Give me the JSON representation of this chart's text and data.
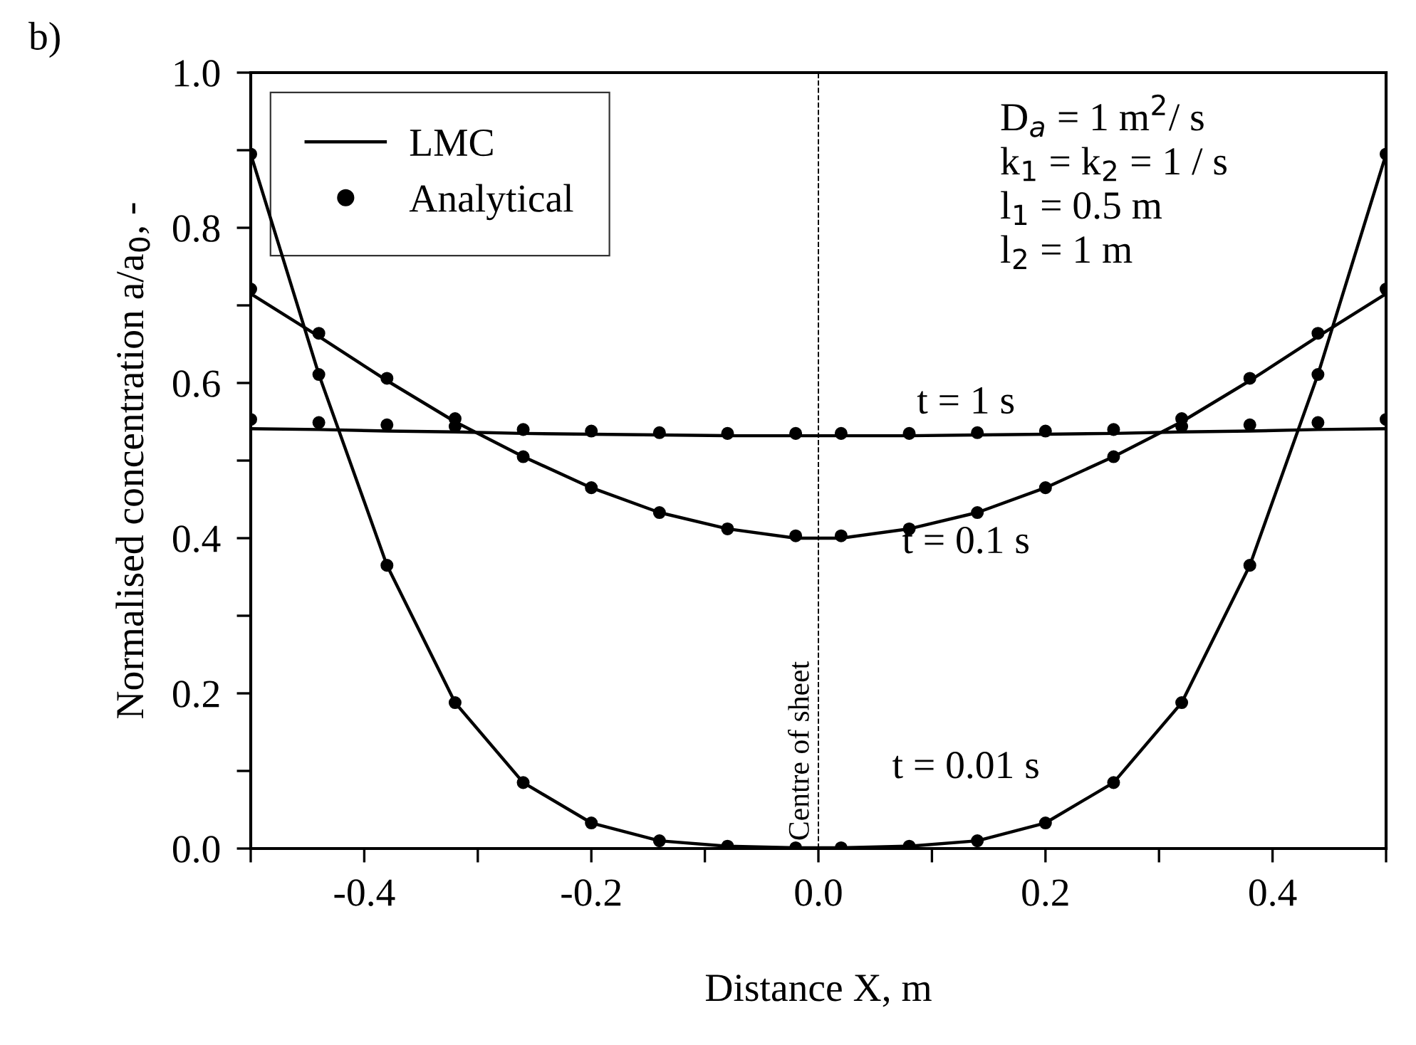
{
  "chart_data": {
    "type": "line",
    "xlabel": "Distance X, m",
    "ylabel": "Normalised concentration a/a$_{0}$, -",
    "xlim": [
      -0.5,
      0.5
    ],
    "ylim": [
      0,
      1.0
    ],
    "xticks": [
      {
        "value": -0.5,
        "label": null
      },
      {
        "value": -0.4,
        "label": "-0.4"
      },
      {
        "value": -0.3,
        "label": null
      },
      {
        "value": -0.2,
        "label": "-0.2"
      },
      {
        "value": -0.1,
        "label": null
      },
      {
        "value": 0.0,
        "label": "0.0"
      },
      {
        "value": 0.1,
        "label": null
      },
      {
        "value": 0.2,
        "label": "0.2"
      },
      {
        "value": 0.3,
        "label": null
      },
      {
        "value": 0.4,
        "label": "0.4"
      },
      {
        "value": 0.5,
        "label": null
      }
    ],
    "yticks": [
      {
        "value": 0.0,
        "label": "0.0"
      },
      {
        "value": 0.1,
        "label": null
      },
      {
        "value": 0.2,
        "label": "0.2"
      },
      {
        "value": 0.3,
        "label": null
      },
      {
        "value": 0.4,
        "label": "0.4"
      },
      {
        "value": 0.5,
        "label": null
      },
      {
        "value": 0.6,
        "label": "0.6"
      },
      {
        "value": 0.7,
        "label": null
      },
      {
        "value": 0.8,
        "label": "0.8"
      },
      {
        "value": 0.9,
        "label": null
      },
      {
        "value": 1.0,
        "label": "1.0"
      }
    ],
    "x": [
      -0.5,
      -0.44,
      -0.38,
      -0.32,
      -0.26,
      -0.2,
      -0.14,
      -0.08,
      -0.02,
      0.02,
      0.08,
      0.14,
      0.2,
      0.26,
      0.32,
      0.38,
      0.44,
      0.5
    ],
    "series": [
      {
        "name": "LMC",
        "color": "#000000",
        "marker": "none",
        "line_style": "solid",
        "values": [
          0.895,
          0.611,
          0.365,
          0.188,
          0.085,
          0.033,
          0.01,
          0.003,
          0.001,
          0.001,
          0.003,
          0.01,
          0.033,
          0.085,
          0.188,
          0.365,
          0.611,
          0.895
        ]
      },
      {
        "color": "#000000",
        "marker": "none",
        "line_style": "solid",
        "values": [
          0.715,
          0.66,
          0.603,
          0.55,
          0.505,
          0.465,
          0.433,
          0.412,
          0.4,
          0.4,
          0.412,
          0.433,
          0.465,
          0.505,
          0.55,
          0.603,
          0.66,
          0.715
        ]
      },
      {
        "color": "#000000",
        "marker": "none",
        "line_style": "solid",
        "values": [
          0.541,
          0.54,
          0.538,
          0.537,
          0.535,
          0.534,
          0.533,
          0.532,
          0.532,
          0.532,
          0.532,
          0.533,
          0.534,
          0.535,
          0.537,
          0.538,
          0.54,
          0.541
        ]
      },
      {
        "name": "Analytical",
        "type": "scatter",
        "color": "#000000",
        "marker": "circle",
        "values": [
          0.895,
          0.611,
          0.365,
          0.188,
          0.085,
          0.033,
          0.01,
          0.003,
          0.001,
          0.001,
          0.003,
          0.01,
          0.033,
          0.085,
          0.188,
          0.365,
          0.611,
          0.895
        ]
      },
      {
        "type": "scatter",
        "color": "#000000",
        "marker": "circle",
        "values": [
          0.721,
          0.664,
          0.606,
          0.554,
          0.505,
          0.465,
          0.433,
          0.412,
          0.403,
          0.403,
          0.412,
          0.433,
          0.465,
          0.505,
          0.554,
          0.606,
          0.664,
          0.721
        ]
      },
      {
        "type": "scatter",
        "color": "#000000",
        "marker": "circle",
        "values": [
          0.553,
          0.549,
          0.546,
          0.544,
          0.54,
          0.538,
          0.536,
          0.535,
          0.535,
          0.535,
          0.535,
          0.536,
          0.538,
          0.54,
          0.544,
          0.546,
          0.549,
          0.553
        ]
      }
    ],
    "ref_lines": [
      {
        "axis": "x",
        "value": 0.0,
        "label": "Centre of sheet",
        "color": "#000000",
        "line_style": "dashed"
      }
    ],
    "annotations": [
      "b)",
      "D$_{a}$ = 1 m$^{2}$/ s\nk$_{1}$ = k$_{2}$ = 1 / s\nl$_{1}$ = 0.5 m\nl$_{2}$ = 1 m",
      "t = 1 s",
      "t = 0.1 s",
      "t = 0.01 s"
    ],
    "legend": "top left",
    "grid": false
  }
}
